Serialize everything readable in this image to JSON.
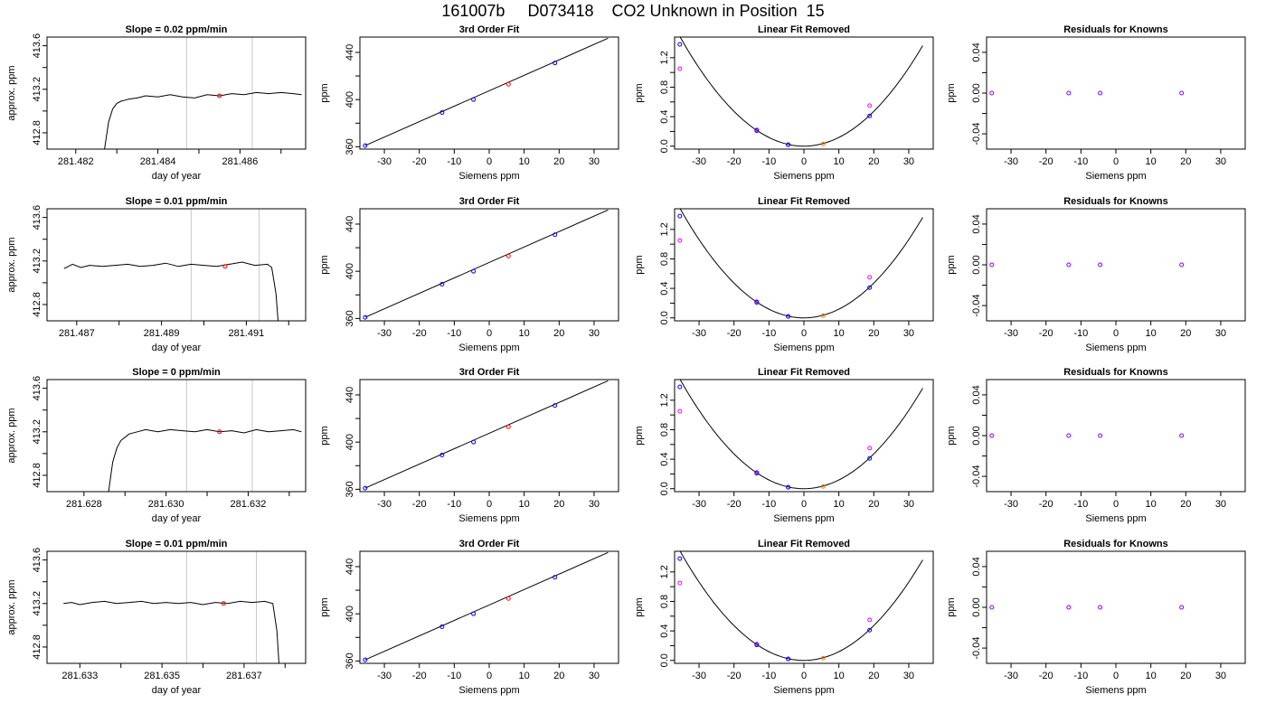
{
  "page_title": "161007b     D073418    CO2 Unknown in Position  15",
  "chart_data": [
    {
      "type": "line",
      "title": "Slope =  0.02  ppm/min",
      "xlabel": "day of year",
      "ylabel": "approx. ppm",
      "xlim": [
        281.4813,
        281.4876
      ],
      "ylim": [
        412.65,
        413.68
      ],
      "xticks": [
        281.482,
        281.483,
        281.484,
        281.485,
        281.486,
        281.487
      ],
      "xtick_labels": [
        "281.482",
        "",
        "281.484",
        "",
        "281.486",
        ""
      ],
      "yticks": [
        412.8,
        413.2,
        413.6
      ],
      "ytick_labels": [
        "412.8",
        "413.2",
        "413.6"
      ],
      "minor_yticks": [
        413.0,
        413.4
      ],
      "vlines": [
        281.4847,
        281.4863
      ],
      "marker": {
        "x": 281.4855,
        "y": 413.14
      },
      "series": [
        {
          "x": [
            281.4827,
            281.4828,
            281.4829,
            281.483,
            281.4831,
            281.4832,
            281.4833,
            281.4835,
            281.4837,
            281.484,
            281.4843,
            281.4846,
            281.4849,
            281.4852,
            281.4855,
            281.4858,
            281.4861,
            281.4864,
            281.4867,
            281.487,
            281.4873,
            281.4875
          ],
          "y": [
            412.65,
            412.9,
            413.02,
            413.07,
            413.09,
            413.1,
            413.11,
            413.12,
            413.14,
            413.13,
            413.15,
            413.13,
            413.12,
            413.15,
            413.14,
            413.16,
            413.15,
            413.17,
            413.16,
            413.17,
            413.16,
            413.15
          ]
        }
      ]
    },
    {
      "type": "scatter",
      "title": "3rd Order Fit",
      "xlabel": "Siemens ppm",
      "ylabel": "ppm",
      "xlim": [
        -37,
        37
      ],
      "ylim": [
        358,
        453
      ],
      "xticks": [
        -30,
        -20,
        -10,
        0,
        10,
        20,
        30
      ],
      "yticks": [
        360,
        400,
        440
      ],
      "minor_yticks": [
        380,
        420
      ],
      "knowns": {
        "x": [
          -35.5,
          -13.5,
          -4.5,
          18.8
        ],
        "y": [
          361,
          389,
          400,
          431
        ]
      },
      "unknown": {
        "x": [
          5.5
        ],
        "y": [
          413
        ]
      },
      "fit_line": {
        "x": [
          -35.5,
          34
        ],
        "y": [
          361,
          452
        ]
      }
    },
    {
      "type": "scatter",
      "title": "Linear Fit Removed",
      "xlabel": "Siemens ppm",
      "ylabel": "ppm",
      "xlim": [
        -37,
        37
      ],
      "ylim": [
        -0.04,
        1.48
      ],
      "xticks": [
        -30,
        -20,
        -10,
        0,
        10,
        20,
        30
      ],
      "yticks": [
        0,
        0.4,
        0.8,
        1.2
      ],
      "ytick_labels": [
        "0.0",
        "0.4",
        "0.8",
        "1.2"
      ],
      "minor_yticks": [
        0.2,
        0.6,
        1.0
      ],
      "knowns": {
        "x": [
          -35.5,
          -13.5,
          -4.5,
          18.8
        ],
        "y": [
          1.38,
          0.21,
          0.02,
          0.41
        ]
      },
      "alt_knowns": {
        "x": [
          -35.5,
          -13.5,
          -4.5,
          18.8
        ],
        "y": [
          1.05,
          0.22,
          0.02,
          0.55
        ]
      },
      "unknown": {
        "x": [
          5.5
        ],
        "y": [
          0.03
        ]
      },
      "curve": {
        "a": 0.00118,
        "xrange": [
          -35.5,
          34
        ]
      }
    },
    {
      "type": "scatter",
      "title": "Residuals for Knowns",
      "xlabel": "Siemens ppm",
      "ylabel": "ppm",
      "xlim": [
        -37,
        37
      ],
      "ylim": [
        -0.055,
        0.055
      ],
      "xticks": [
        -30,
        -20,
        -10,
        0,
        10,
        20,
        30
      ],
      "yticks": [
        -0.04,
        0,
        0.04
      ],
      "ytick_labels": [
        "-0.04",
        "0.00",
        "0.04"
      ],
      "minor_yticks": [
        -0.02,
        0.02
      ],
      "knowns": {
        "x": [
          -35.5,
          -13.5,
          -4.5,
          18.8
        ],
        "y": [
          0,
          0,
          0,
          0
        ]
      }
    },
    {
      "type": "line",
      "title": "Slope =  0.01  ppm/min",
      "xlabel": "day of year",
      "ylabel": "approx. ppm",
      "xlim": [
        281.4863,
        281.4924
      ],
      "ylim": [
        412.65,
        413.68
      ],
      "xticks": [
        281.487,
        281.488,
        281.489,
        281.49,
        281.491,
        281.492
      ],
      "xtick_labels": [
        "281.487",
        "",
        "281.489",
        "",
        "281.491",
        ""
      ],
      "yticks": [
        412.8,
        413.2,
        413.6
      ],
      "ytick_labels": [
        "412.8",
        "413.2",
        "413.6"
      ],
      "minor_yticks": [
        413.0,
        413.4
      ],
      "vlines": [
        281.4897,
        281.4913
      ],
      "marker": {
        "x": 281.4905,
        "y": 413.15
      },
      "series": [
        {
          "x": [
            281.4867,
            281.4869,
            281.4871,
            281.4873,
            281.4876,
            281.4879,
            281.4882,
            281.4885,
            281.4888,
            281.4891,
            281.4894,
            281.4897,
            281.49,
            281.4903,
            281.4906,
            281.4909,
            281.4912,
            281.4915,
            281.4916,
            281.4917,
            281.49175
          ],
          "y": [
            413.13,
            413.17,
            413.14,
            413.16,
            413.15,
            413.16,
            413.17,
            413.15,
            413.16,
            413.18,
            413.15,
            413.17,
            413.16,
            413.15,
            413.17,
            413.19,
            413.16,
            413.17,
            413.14,
            412.9,
            412.65
          ]
        }
      ]
    },
    {
      "type": "scatter",
      "title": "3rd Order Fit",
      "xlabel": "Siemens ppm",
      "ylabel": "ppm",
      "xlim": [
        -37,
        37
      ],
      "ylim": [
        358,
        453
      ],
      "xticks": [
        -30,
        -20,
        -10,
        0,
        10,
        20,
        30
      ],
      "yticks": [
        360,
        400,
        440
      ],
      "minor_yticks": [
        380,
        420
      ],
      "knowns": {
        "x": [
          -35.5,
          -13.5,
          -4.5,
          18.8
        ],
        "y": [
          361,
          389,
          400,
          431
        ]
      },
      "unknown": {
        "x": [
          5.5
        ],
        "y": [
          413
        ]
      },
      "fit_line": {
        "x": [
          -35.5,
          34
        ],
        "y": [
          361,
          452
        ]
      }
    },
    {
      "type": "scatter",
      "title": "Linear Fit Removed",
      "xlabel": "Siemens ppm",
      "ylabel": "ppm",
      "xlim": [
        -37,
        37
      ],
      "ylim": [
        -0.04,
        1.48
      ],
      "xticks": [
        -30,
        -20,
        -10,
        0,
        10,
        20,
        30
      ],
      "yticks": [
        0,
        0.4,
        0.8,
        1.2
      ],
      "ytick_labels": [
        "0.0",
        "0.4",
        "0.8",
        "1.2"
      ],
      "minor_yticks": [
        0.2,
        0.6,
        1.0
      ],
      "knowns": {
        "x": [
          -35.5,
          -13.5,
          -4.5,
          18.8
        ],
        "y": [
          1.38,
          0.21,
          0.02,
          0.41
        ]
      },
      "alt_knowns": {
        "x": [
          -35.5,
          -13.5,
          -4.5,
          18.8
        ],
        "y": [
          1.05,
          0.22,
          0.02,
          0.55
        ]
      },
      "unknown": {
        "x": [
          5.5
        ],
        "y": [
          0.03
        ]
      },
      "curve": {
        "a": 0.00118,
        "xrange": [
          -35.5,
          34
        ]
      }
    },
    {
      "type": "scatter",
      "title": "Residuals for Knowns",
      "xlabel": "Siemens ppm",
      "ylabel": "ppm",
      "xlim": [
        -37,
        37
      ],
      "ylim": [
        -0.055,
        0.055
      ],
      "xticks": [
        -30,
        -20,
        -10,
        0,
        10,
        20,
        30
      ],
      "yticks": [
        -0.04,
        0,
        0.04
      ],
      "ytick_labels": [
        "-0.04",
        "0.00",
        "0.04"
      ],
      "minor_yticks": [
        -0.02,
        0.02
      ],
      "knowns": {
        "x": [
          -35.5,
          -13.5,
          -4.5,
          18.8
        ],
        "y": [
          0,
          0,
          0,
          0
        ]
      }
    },
    {
      "type": "line",
      "title": "Slope =  0  ppm/min",
      "xlabel": "day of year",
      "ylabel": "approx. ppm",
      "xlim": [
        281.6271,
        281.6334
      ],
      "ylim": [
        412.65,
        413.68
      ],
      "xticks": [
        281.628,
        281.629,
        281.63,
        281.631,
        281.632,
        281.633
      ],
      "xtick_labels": [
        "281.628",
        "",
        "281.630",
        "",
        "281.632",
        ""
      ],
      "yticks": [
        412.8,
        413.2,
        413.6
      ],
      "ytick_labels": [
        "412.8",
        "413.2",
        "413.6"
      ],
      "minor_yticks": [
        413.0,
        413.4
      ],
      "vlines": [
        281.6305,
        281.6321
      ],
      "marker": {
        "x": 281.6313,
        "y": 413.2
      },
      "series": [
        {
          "x": [
            281.6286,
            281.6287,
            281.6288,
            281.6289,
            281.629,
            281.6291,
            281.6293,
            281.6295,
            281.6298,
            281.6301,
            281.6304,
            281.6307,
            281.631,
            281.6313,
            281.6316,
            281.6319,
            281.6322,
            281.6325,
            281.6328,
            281.6331,
            281.6333
          ],
          "y": [
            412.65,
            412.92,
            413.05,
            413.12,
            413.15,
            413.18,
            413.2,
            413.22,
            413.2,
            413.22,
            413.21,
            413.2,
            413.22,
            413.2,
            413.21,
            413.19,
            413.22,
            413.2,
            413.21,
            413.22,
            413.2
          ]
        }
      ]
    },
    {
      "type": "scatter",
      "title": "3rd Order Fit",
      "xlabel": "Siemens ppm",
      "ylabel": "ppm",
      "xlim": [
        -37,
        37
      ],
      "ylim": [
        358,
        453
      ],
      "xticks": [
        -30,
        -20,
        -10,
        0,
        10,
        20,
        30
      ],
      "yticks": [
        360,
        400,
        440
      ],
      "minor_yticks": [
        380,
        420
      ],
      "knowns": {
        "x": [
          -35.5,
          -13.5,
          -4.5,
          18.8
        ],
        "y": [
          361,
          389,
          400,
          431
        ]
      },
      "unknown": {
        "x": [
          5.5
        ],
        "y": [
          413
        ]
      },
      "fit_line": {
        "x": [
          -35.5,
          34
        ],
        "y": [
          361,
          452
        ]
      }
    },
    {
      "type": "scatter",
      "title": "Linear Fit Removed",
      "xlabel": "Siemens ppm",
      "ylabel": "ppm",
      "xlim": [
        -37,
        37
      ],
      "ylim": [
        -0.04,
        1.48
      ],
      "xticks": [
        -30,
        -20,
        -10,
        0,
        10,
        20,
        30
      ],
      "yticks": [
        0,
        0.4,
        0.8,
        1.2
      ],
      "ytick_labels": [
        "0.0",
        "0.4",
        "0.8",
        "1.2"
      ],
      "minor_yticks": [
        0.2,
        0.6,
        1.0
      ],
      "knowns": {
        "x": [
          -35.5,
          -13.5,
          -4.5,
          18.8
        ],
        "y": [
          1.38,
          0.21,
          0.02,
          0.41
        ]
      },
      "alt_knowns": {
        "x": [
          -35.5,
          -13.5,
          -4.5,
          18.8
        ],
        "y": [
          1.05,
          0.22,
          0.02,
          0.55
        ]
      },
      "unknown": {
        "x": [
          5.5
        ],
        "y": [
          0.03
        ]
      },
      "curve": {
        "a": 0.00118,
        "xrange": [
          -35.5,
          34
        ]
      }
    },
    {
      "type": "scatter",
      "title": "Residuals for Knowns",
      "xlabel": "Siemens ppm",
      "ylabel": "ppm",
      "xlim": [
        -37,
        37
      ],
      "ylim": [
        -0.055,
        0.055
      ],
      "xticks": [
        -30,
        -20,
        -10,
        0,
        10,
        20,
        30
      ],
      "yticks": [
        -0.04,
        0,
        0.04
      ],
      "ytick_labels": [
        "-0.04",
        "0.00",
        "0.04"
      ],
      "minor_yticks": [
        -0.02,
        0.02
      ],
      "knowns": {
        "x": [
          -35.5,
          -13.5,
          -4.5,
          18.8
        ],
        "y": [
          0,
          0,
          0,
          0
        ]
      }
    },
    {
      "type": "line",
      "title": "Slope =  0.01  ppm/min",
      "xlabel": "day of year",
      "ylabel": "approx. ppm",
      "xlim": [
        281.6322,
        281.6385
      ],
      "ylim": [
        412.65,
        413.68
      ],
      "xticks": [
        281.633,
        281.634,
        281.635,
        281.636,
        281.637,
        281.638
      ],
      "xtick_labels": [
        "281.633",
        "",
        "281.635",
        "",
        "281.637",
        ""
      ],
      "yticks": [
        412.8,
        413.2,
        413.6
      ],
      "ytick_labels": [
        "412.8",
        "413.2",
        "413.6"
      ],
      "minor_yticks": [
        413.0,
        413.4
      ],
      "vlines": [
        281.6356,
        281.6373
      ],
      "marker": {
        "x": 281.6365,
        "y": 413.2
      },
      "series": [
        {
          "x": [
            281.6326,
            281.6328,
            281.633,
            281.6333,
            281.6336,
            281.6339,
            281.6342,
            281.6345,
            281.6348,
            281.6351,
            281.6354,
            281.6357,
            281.636,
            281.6363,
            281.6366,
            281.6369,
            281.6372,
            281.6375,
            281.6377,
            281.6378,
            281.63785
          ],
          "y": [
            413.2,
            413.21,
            413.19,
            413.21,
            413.22,
            413.2,
            413.21,
            413.22,
            413.2,
            413.21,
            413.2,
            413.21,
            413.19,
            413.21,
            413.2,
            413.22,
            413.21,
            413.22,
            413.2,
            412.95,
            412.65
          ]
        }
      ]
    },
    {
      "type": "scatter",
      "title": "3rd Order Fit",
      "xlabel": "Siemens ppm",
      "ylabel": "ppm",
      "xlim": [
        -37,
        37
      ],
      "ylim": [
        358,
        453
      ],
      "xticks": [
        -30,
        -20,
        -10,
        0,
        10,
        20,
        30
      ],
      "yticks": [
        360,
        400,
        440
      ],
      "minor_yticks": [
        380,
        420
      ],
      "knowns": {
        "x": [
          -35.5,
          -13.5,
          -4.5,
          18.8
        ],
        "y": [
          361,
          389,
          400,
          431
        ]
      },
      "unknown": {
        "x": [
          5.5
        ],
        "y": [
          413
        ]
      },
      "fit_line": {
        "x": [
          -35.5,
          34
        ],
        "y": [
          361,
          452
        ]
      }
    },
    {
      "type": "scatter",
      "title": "Linear Fit Removed",
      "xlabel": "Siemens ppm",
      "ylabel": "ppm",
      "xlim": [
        -37,
        37
      ],
      "ylim": [
        -0.04,
        1.48
      ],
      "xticks": [
        -30,
        -20,
        -10,
        0,
        10,
        20,
        30
      ],
      "yticks": [
        0,
        0.4,
        0.8,
        1.2
      ],
      "ytick_labels": [
        "0.0",
        "0.4",
        "0.8",
        "1.2"
      ],
      "minor_yticks": [
        0.2,
        0.6,
        1.0
      ],
      "knowns": {
        "x": [
          -35.5,
          -13.5,
          -4.5,
          18.8
        ],
        "y": [
          1.38,
          0.21,
          0.02,
          0.41
        ]
      },
      "alt_knowns": {
        "x": [
          -35.5,
          -13.5,
          -4.5,
          18.8
        ],
        "y": [
          1.05,
          0.22,
          0.02,
          0.55
        ]
      },
      "unknown": {
        "x": [
          5.5
        ],
        "y": [
          0.03
        ]
      },
      "curve": {
        "a": 0.00118,
        "xrange": [
          -35.5,
          34
        ]
      }
    },
    {
      "type": "scatter",
      "title": "Residuals for Knowns",
      "xlabel": "Siemens ppm",
      "ylabel": "ppm",
      "xlim": [
        -37,
        37
      ],
      "ylim": [
        -0.055,
        0.055
      ],
      "xticks": [
        -30,
        -20,
        -10,
        0,
        10,
        20,
        30
      ],
      "yticks": [
        -0.04,
        0,
        0.04
      ],
      "ytick_labels": [
        "-0.04",
        "0.00",
        "0.04"
      ],
      "minor_yticks": [
        -0.02,
        0.02
      ],
      "knowns": {
        "x": [
          -35.5,
          -13.5,
          -4.5,
          18.8
        ],
        "y": [
          0,
          0,
          0,
          0
        ]
      }
    }
  ],
  "colors": {
    "line": "#000000",
    "vline": "#c8c8c8",
    "known": "#0000ff",
    "alt_known": "#ff00ff",
    "unknown": "#ff0000",
    "unknown_fit": "#ff7f00",
    "residual": "#8a00ff"
  }
}
